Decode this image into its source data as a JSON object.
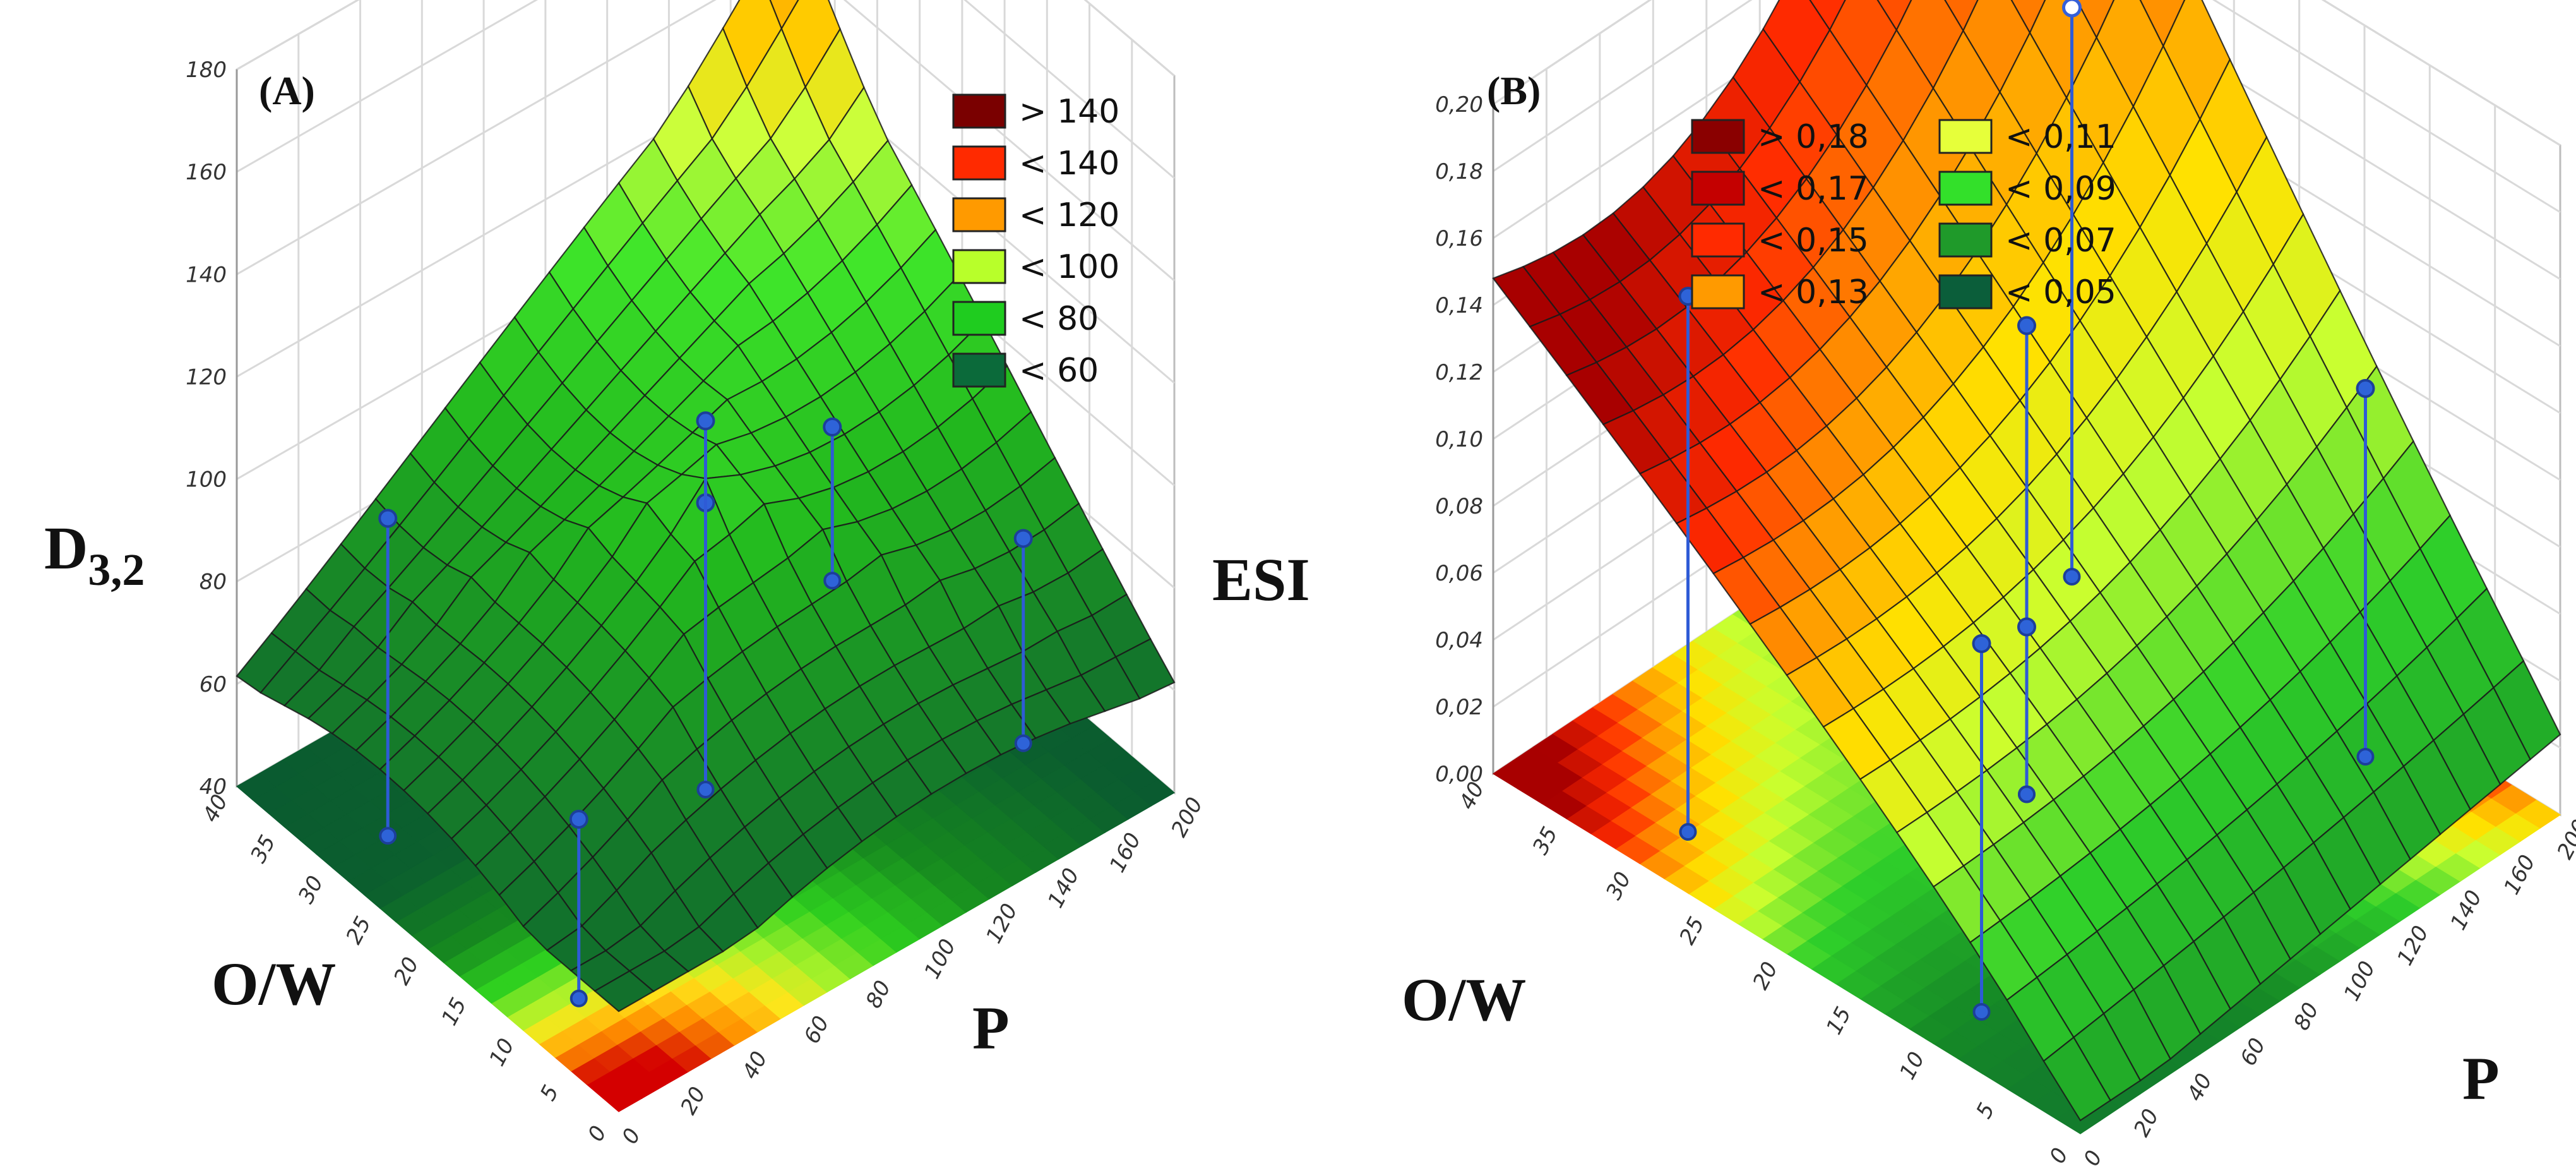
{
  "chart_data": [
    {
      "type": "surface3d",
      "panel_label": "(A)",
      "z_label_main": "D",
      "z_label_sub": "3,2",
      "x_label": "P",
      "y_label": "O/W",
      "x_ticks": [
        "0",
        "20",
        "40",
        "60",
        "80",
        "100",
        "120",
        "140",
        "160",
        "200"
      ],
      "y_ticks": [
        "0",
        "5",
        "10",
        "15",
        "20",
        "25",
        "30",
        "35",
        "40"
      ],
      "z_ticks": [
        "40",
        "60",
        "80",
        "100",
        "120",
        "140",
        "160",
        "180"
      ],
      "zlim": [
        40,
        180
      ],
      "legend": [
        {
          "label": "> 140",
          "color": "#7a0000"
        },
        {
          "label": "< 140",
          "color": "#ff2a00"
        },
        {
          "label": "< 120",
          "color": "#ff9a00"
        },
        {
          "label": "< 100",
          "color": "#b8ff2a"
        },
        {
          "label": "< 80",
          "color": "#1fcc1f"
        },
        {
          "label": "< 60",
          "color": "#0b6a3a"
        }
      ],
      "data_points": [
        {
          "p": 20,
          "ow": 10,
          "z": 75
        },
        {
          "p": 20,
          "ow": 30,
          "z": 102
        },
        {
          "p": 100,
          "ow": 20,
          "z": 96
        },
        {
          "p": 100,
          "ow": 20,
          "z": 112
        },
        {
          "p": 180,
          "ow": 10,
          "z": 80
        },
        {
          "p": 180,
          "ow": 30,
          "z": 70
        }
      ]
    },
    {
      "type": "surface3d",
      "panel_label": "(B)",
      "z_label_main": "ESI",
      "x_label": "P",
      "y_label": "O/W",
      "x_ticks": [
        "0",
        "20",
        "40",
        "60",
        "80",
        "100",
        "120",
        "140",
        "160",
        "200"
      ],
      "y_ticks": [
        "0",
        "5",
        "10",
        "15",
        "20",
        "25",
        "30",
        "35",
        "40"
      ],
      "z_ticks": [
        "0,00",
        "0,02",
        "0,04",
        "0,06",
        "0,08",
        "0,10",
        "0,12",
        "0,14",
        "0,16",
        "0,18",
        "0,20"
      ],
      "zlim": [
        0,
        0.2
      ],
      "legend": [
        {
          "label": "> 0,18",
          "color": "#8a0000"
        },
        {
          "label": "< 0,17",
          "color": "#c40000"
        },
        {
          "label": "< 0,15",
          "color": "#ff2a00"
        },
        {
          "label": "< 0,13",
          "color": "#ff9a00"
        },
        {
          "label": "< 0,11",
          "color": "#e6ff3a"
        },
        {
          "label": "< 0,09",
          "color": "#33e02a"
        },
        {
          "label": "< 0,07",
          "color": "#1f9a2a"
        },
        {
          "label": "< 0,05",
          "color": "#0b5e3a"
        }
      ],
      "data_points": [
        {
          "p": 20,
          "ow": 10,
          "z": 0.11
        },
        {
          "p": 20,
          "ow": 30,
          "z": 0.16
        },
        {
          "p": 100,
          "ow": 20,
          "z": 0.14
        },
        {
          "p": 100,
          "ow": 20,
          "z": 0.05
        },
        {
          "p": 180,
          "ow": 10,
          "z": 0.11
        },
        {
          "p": 180,
          "ow": 30,
          "z": 0.17
        }
      ]
    }
  ]
}
